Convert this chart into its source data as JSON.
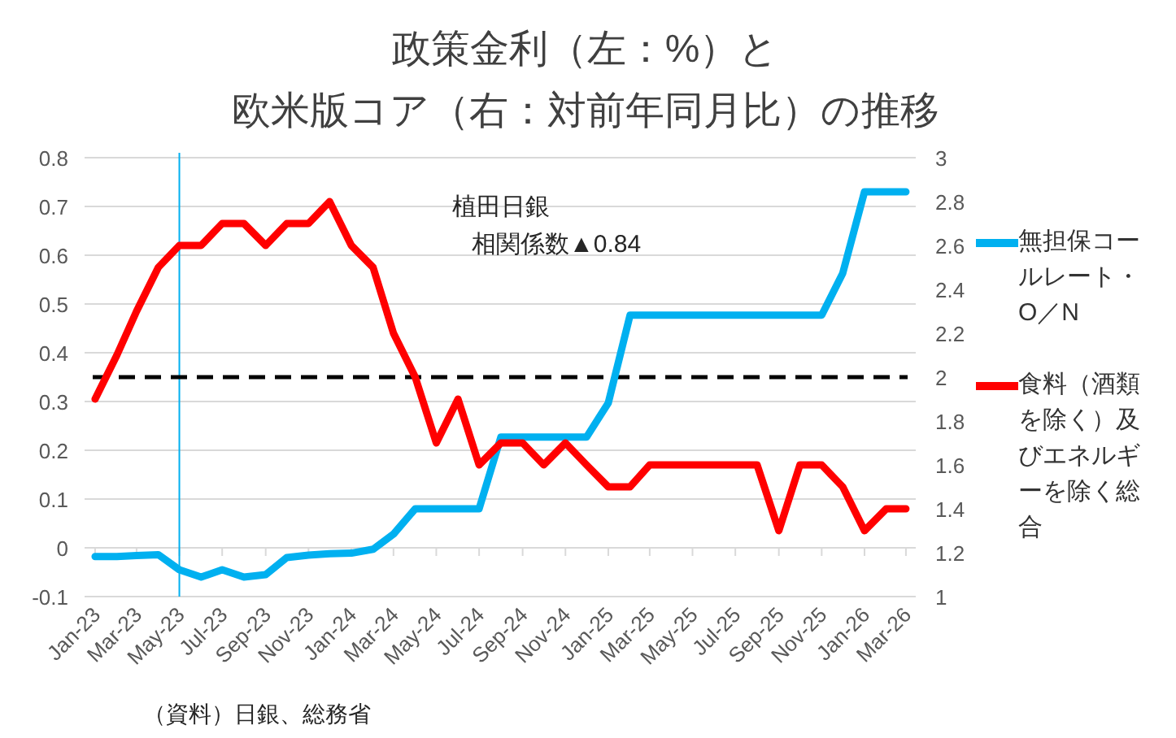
{
  "chart_data": {
    "type": "line",
    "title": "政策金利（左：%）と",
    "subtitle": "欧米版コア（右：対前年同月比）の推移",
    "x": [
      "2023-01",
      "2023-02",
      "2023-03",
      "2023-04",
      "2023-05",
      "2023-06",
      "2023-07",
      "2023-08",
      "2023-09",
      "2023-10",
      "2023-11",
      "2023-12",
      "2024-01",
      "2024-02",
      "2024-03",
      "2024-04",
      "2024-05",
      "2024-06",
      "2024-07",
      "2024-08",
      "2024-09",
      "2024-10",
      "2024-11",
      "2024-12",
      "2025-01",
      "2025-02",
      "2025-03",
      "2025-04",
      "2025-05",
      "2025-06",
      "2025-07",
      "2025-08",
      "2025-09",
      "2025-10",
      "2025-11",
      "2025-12",
      "2026-01",
      "2026-02",
      "2026-03"
    ],
    "series": [
      {
        "name": "無担保コールレート・O／N",
        "color": "#00b0f0",
        "values": [
          -0.018,
          -0.018,
          -0.016,
          -0.014,
          -0.045,
          -0.06,
          -0.045,
          -0.06,
          -0.055,
          -0.02,
          -0.015,
          -0.012,
          -0.011,
          -0.003,
          0.028,
          0.08,
          0.08,
          0.08,
          0.08,
          0.227,
          0.227,
          0.227,
          0.227,
          0.227,
          0.297,
          0.477,
          0.477,
          0.477,
          0.477,
          0.477,
          0.477,
          0.477,
          0.477,
          0.477,
          0.477,
          0.563,
          0.73,
          0.73,
          0.73
        ]
      },
      {
        "name": "食料（酒類を除く）及びエネルギーを除く総合",
        "color": "#ff0000",
        "axis": "y2",
        "values": [
          1.9,
          2.1,
          2.3,
          2.5,
          2.6,
          2.6,
          2.7,
          2.7,
          2.6,
          2.7,
          2.7,
          2.8,
          2.6,
          2.5,
          2.2,
          2.0,
          1.7,
          1.9,
          1.6,
          1.7,
          1.7,
          1.6,
          1.7,
          1.6,
          1.5,
          1.5,
          1.6,
          1.6,
          1.6,
          1.6,
          1.6,
          1.6,
          1.3,
          1.6,
          1.6,
          1.5,
          1.3,
          1.4,
          1.4
        ]
      }
    ],
    "xlim": [
      "2022-12-17",
      "2026-03-15"
    ],
    "xticks": [
      {
        "value": "2023-01",
        "label": "Jan-23"
      },
      {
        "value": "2023-03",
        "label": "Mar-23"
      },
      {
        "value": "2023-05",
        "label": "May-23"
      },
      {
        "value": "2023-07",
        "label": "Jul-23"
      },
      {
        "value": "2023-09",
        "label": "Sep-23"
      },
      {
        "value": "2023-11",
        "label": "Nov-23"
      },
      {
        "value": "2024-01",
        "label": "Jan-24"
      },
      {
        "value": "2024-03",
        "label": "Mar-24"
      },
      {
        "value": "2024-05",
        "label": "May-24"
      },
      {
        "value": "2024-07",
        "label": "Jul-24"
      },
      {
        "value": "2024-09",
        "label": "Sep-24"
      },
      {
        "value": "2024-11",
        "label": "Nov-24"
      },
      {
        "value": "2025-01",
        "label": "Jan-25"
      },
      {
        "value": "2025-03",
        "label": "Mar-25"
      },
      {
        "value": "2025-05",
        "label": "May-25"
      },
      {
        "value": "2025-07",
        "label": "Jul-25"
      },
      {
        "value": "2025-09",
        "label": "Sep-25"
      },
      {
        "value": "2025-11",
        "label": "Nov-25"
      },
      {
        "value": "2026-01",
        "label": "Jan-26"
      },
      {
        "value": "2026-03",
        "label": "Mar-26"
      }
    ],
    "ylim": [
      -0.1,
      0.8
    ],
    "yticks": [
      -0.1,
      0,
      0.1,
      0.2,
      0.3,
      0.4,
      0.5,
      0.6,
      0.7,
      0.8
    ],
    "y2lim": [
      1,
      3
    ],
    "y2ticks": [
      1,
      1.2,
      1.4,
      1.6,
      1.8,
      2,
      2.2,
      2.4,
      2.6,
      2.8,
      3
    ],
    "ref_lines": [
      {
        "axis": "x",
        "value": "2023-05",
        "color": "#00b0f0",
        "line_style": "solid"
      },
      {
        "axis": "y",
        "value": 0.35,
        "color": "#000000",
        "line_style": "dashed"
      }
    ],
    "annotations": [
      "植田日銀",
      "相関係数▲0.84",
      "（資料）日銀、総務省"
    ],
    "grid": "y",
    "legend": "right",
    "marker": "none",
    "line_style": "solid"
  }
}
